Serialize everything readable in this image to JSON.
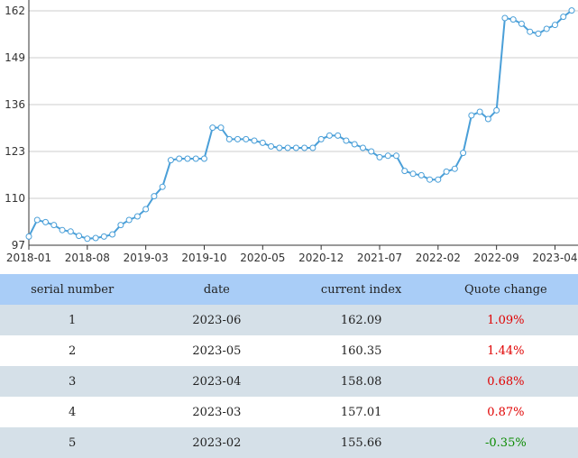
{
  "chart_data": {
    "type": "line",
    "ylim": [
      97,
      162
    ],
    "y_ticks": [
      "97",
      "110",
      "123",
      "136",
      "149",
      "162"
    ],
    "x_ticks": [
      "2018-01",
      "2018-08",
      "2019-03",
      "2019-10",
      "2020-05",
      "2020-12",
      "2021-07",
      "2022-02",
      "2022-09",
      "2023-04"
    ],
    "x": [
      "2018-01",
      "2018-02",
      "2018-03",
      "2018-04",
      "2018-05",
      "2018-06",
      "2018-07",
      "2018-08",
      "2018-09",
      "2018-10",
      "2018-11",
      "2018-12",
      "2019-01",
      "2019-02",
      "2019-03",
      "2019-04",
      "2019-05",
      "2019-06",
      "2019-07",
      "2019-08",
      "2019-09",
      "2019-10",
      "2019-11",
      "2019-12",
      "2020-01",
      "2020-02",
      "2020-03",
      "2020-04",
      "2020-05",
      "2020-06",
      "2020-07",
      "2020-08",
      "2020-09",
      "2020-10",
      "2020-11",
      "2020-12",
      "2021-01",
      "2021-02",
      "2021-03",
      "2021-04",
      "2021-05",
      "2021-06",
      "2021-07",
      "2021-08",
      "2021-09",
      "2021-10",
      "2021-11",
      "2021-12",
      "2022-01",
      "2022-02",
      "2022-03",
      "2022-04",
      "2022-05",
      "2022-06",
      "2022-07",
      "2022-08",
      "2022-09",
      "2022-10",
      "2022-11",
      "2022-12",
      "2023-01",
      "2023-02",
      "2023-03",
      "2023-04",
      "2023-05",
      "2023-06"
    ],
    "values": [
      99.4,
      104.0,
      103.4,
      102.6,
      101.2,
      100.8,
      99.6,
      98.8,
      99.0,
      99.4,
      100.0,
      102.6,
      104.0,
      105.0,
      107.0,
      110.6,
      113.2,
      120.6,
      121.0,
      121.0,
      121.0,
      121.0,
      129.6,
      129.6,
      126.4,
      126.4,
      126.4,
      126.0,
      125.4,
      124.4,
      124.0,
      124.0,
      124.0,
      124.0,
      124.0,
      126.4,
      127.4,
      127.4,
      126.0,
      125.0,
      124.0,
      123.0,
      121.4,
      121.8,
      121.8,
      117.6,
      116.8,
      116.4,
      115.2,
      115.2,
      117.4,
      118.2,
      122.6,
      133.0,
      134.0,
      132.0,
      134.4,
      160.0,
      159.6,
      158.4,
      156.2,
      155.66,
      157.01,
      158.08,
      160.35,
      162.09
    ],
    "grid": true,
    "legend": "none",
    "line_color": "#4a9fd8",
    "marker_fill": "#ffffff"
  },
  "table": {
    "headers": [
      "serial number",
      "date",
      "current index",
      "Quote change"
    ],
    "rows": [
      {
        "serial": "1",
        "date": "2023-06",
        "index": "162.09",
        "change": "1.09%",
        "direction": "up"
      },
      {
        "serial": "2",
        "date": "2023-05",
        "index": "160.35",
        "change": "1.44%",
        "direction": "up"
      },
      {
        "serial": "3",
        "date": "2023-04",
        "index": "158.08",
        "change": "0.68%",
        "direction": "up"
      },
      {
        "serial": "4",
        "date": "2023-03",
        "index": "157.01",
        "change": "0.87%",
        "direction": "up"
      },
      {
        "serial": "5",
        "date": "2023-02",
        "index": "155.66",
        "change": "-0.35%",
        "direction": "down"
      }
    ]
  }
}
